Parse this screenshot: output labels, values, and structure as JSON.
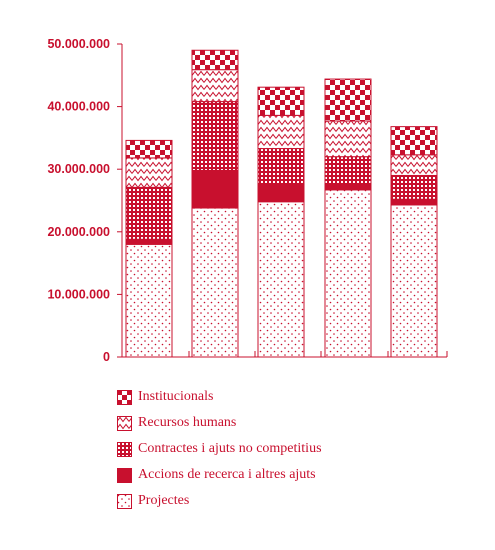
{
  "chart_data": {
    "type": "bar",
    "stacked": true,
    "categories": [
      "",
      "",
      "",
      "",
      ""
    ],
    "series": [
      {
        "name": "Projectes",
        "values": [
          18000000,
          23800000,
          24800000,
          26700000,
          24300000
        ],
        "pattern": "dots"
      },
      {
        "name": "Accions de recerca i altres ajuts",
        "values": [
          800000,
          6000000,
          2800000,
          900000,
          900000
        ],
        "pattern": "solid"
      },
      {
        "name": "Contractes i ajuts no competitius",
        "values": [
          8300000,
          11000000,
          5700000,
          4400000,
          3800000
        ],
        "pattern": "grid"
      },
      {
        "name": "Recursos humans",
        "values": [
          4700000,
          5100000,
          5300000,
          5700000,
          3300000
        ],
        "pattern": "zigzag"
      },
      {
        "name": "Institucionals",
        "values": [
          2800000,
          3100000,
          4500000,
          6700000,
          4500000
        ],
        "pattern": "checker"
      }
    ],
    "title": "",
    "xlabel": "",
    "ylabel": "",
    "ylim": [
      0,
      50000000
    ],
    "yticks": [
      0,
      10000000,
      20000000,
      30000000,
      40000000,
      50000000
    ],
    "ytick_labels": [
      "0",
      "10.000.000",
      "20.000.000",
      "30.000.000",
      "40.000.000",
      "50.000.000"
    ],
    "grid": false,
    "legend_position": "bottom-left",
    "colors": {
      "accent": "#c8102e",
      "background": "#ffffff"
    }
  },
  "legend": {
    "items": [
      {
        "label": "Institucionals",
        "pattern": "checker"
      },
      {
        "label": "Recursos humans",
        "pattern": "zigzag"
      },
      {
        "label": "Contractes i ajuts no competitius",
        "pattern": "grid"
      },
      {
        "label": "Accions de recerca i altres ajuts",
        "pattern": "solid"
      },
      {
        "label": "Projectes",
        "pattern": "dots"
      }
    ]
  }
}
